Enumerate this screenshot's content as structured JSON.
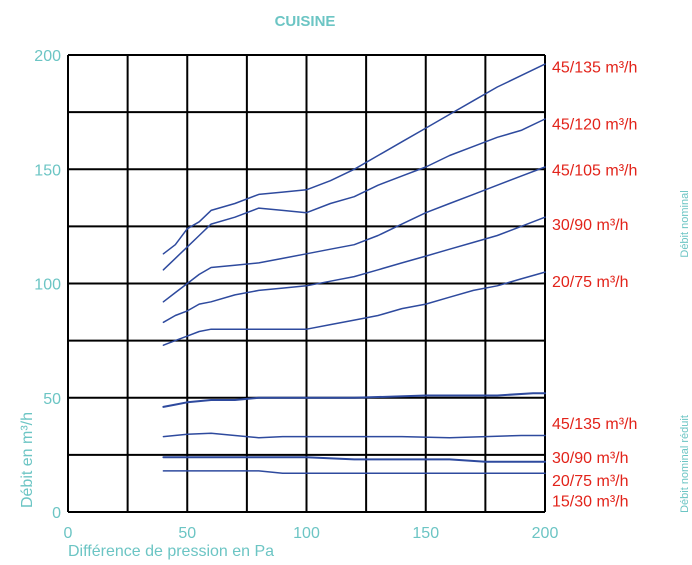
{
  "chart_data": {
    "type": "line",
    "title": "CUISINE",
    "xlabel": "Différence de pression en Pa",
    "ylabel": "Débit en m³/h",
    "xlim": [
      0,
      200
    ],
    "ylim": [
      0,
      200
    ],
    "x_ticks": [
      "0",
      "50",
      "100",
      "150",
      "200"
    ],
    "y_ticks": [
      "0",
      "50",
      "100",
      "150",
      "200"
    ],
    "grid": true,
    "colors": {
      "axis_text": "#6cc5c4",
      "series_labels": "#e2231a",
      "lines": "#2e4a9e",
      "grid": "#000000"
    },
    "group_labels": {
      "nominal": "Débit nominal",
      "reduced": "Débit nominal réduit"
    },
    "series": [
      {
        "name": "45/135 m³/h",
        "group": "nominal",
        "label_y": 195,
        "width": 1.5,
        "points": [
          [
            40,
            113
          ],
          [
            45,
            117
          ],
          [
            50,
            124
          ],
          [
            55,
            127
          ],
          [
            60,
            132
          ],
          [
            70,
            135
          ],
          [
            80,
            139
          ],
          [
            90,
            140
          ],
          [
            100,
            141
          ],
          [
            110,
            145
          ],
          [
            120,
            150
          ],
          [
            130,
            156
          ],
          [
            140,
            162
          ],
          [
            150,
            168
          ],
          [
            160,
            174
          ],
          [
            170,
            180
          ],
          [
            180,
            186
          ],
          [
            190,
            191
          ],
          [
            200,
            196
          ]
        ]
      },
      {
        "name": "45/120 m³/h",
        "group": "nominal",
        "label_y": 170,
        "width": 1.5,
        "points": [
          [
            40,
            106
          ],
          [
            45,
            111
          ],
          [
            50,
            116
          ],
          [
            55,
            121
          ],
          [
            60,
            126
          ],
          [
            70,
            129
          ],
          [
            80,
            133
          ],
          [
            90,
            132
          ],
          [
            100,
            131
          ],
          [
            110,
            135
          ],
          [
            120,
            138
          ],
          [
            130,
            143
          ],
          [
            140,
            147
          ],
          [
            150,
            151
          ],
          [
            160,
            156
          ],
          [
            170,
            160
          ],
          [
            180,
            164
          ],
          [
            190,
            167
          ],
          [
            200,
            172
          ]
        ]
      },
      {
        "name": "45/105 m³/h",
        "group": "nominal",
        "label_y": 150,
        "width": 1.5,
        "points": [
          [
            40,
            92
          ],
          [
            45,
            96
          ],
          [
            50,
            100
          ],
          [
            55,
            104
          ],
          [
            60,
            107
          ],
          [
            70,
            108
          ],
          [
            80,
            109
          ],
          [
            90,
            111
          ],
          [
            100,
            113
          ],
          [
            110,
            115
          ],
          [
            120,
            117
          ],
          [
            130,
            121
          ],
          [
            140,
            126
          ],
          [
            150,
            131
          ],
          [
            160,
            135
          ],
          [
            170,
            139
          ],
          [
            180,
            143
          ],
          [
            190,
            147
          ],
          [
            200,
            151
          ]
        ]
      },
      {
        "name": "30/90 m³/h",
        "group": "nominal",
        "label_y": 126,
        "width": 1.5,
        "points": [
          [
            40,
            83
          ],
          [
            45,
            86
          ],
          [
            50,
            88
          ],
          [
            55,
            91
          ],
          [
            60,
            92
          ],
          [
            70,
            95
          ],
          [
            80,
            97
          ],
          [
            90,
            98
          ],
          [
            100,
            99
          ],
          [
            110,
            101
          ],
          [
            120,
            103
          ],
          [
            130,
            106
          ],
          [
            140,
            109
          ],
          [
            150,
            112
          ],
          [
            160,
            115
          ],
          [
            170,
            118
          ],
          [
            180,
            121
          ],
          [
            190,
            125
          ],
          [
            200,
            129
          ]
        ]
      },
      {
        "name": "20/75 m³/h",
        "group": "nominal",
        "label_y": 101,
        "width": 1.5,
        "points": [
          [
            40,
            73
          ],
          [
            45,
            75
          ],
          [
            50,
            77
          ],
          [
            55,
            79
          ],
          [
            60,
            80
          ],
          [
            70,
            80
          ],
          [
            80,
            80
          ],
          [
            90,
            80
          ],
          [
            100,
            80
          ],
          [
            110,
            82
          ],
          [
            120,
            84
          ],
          [
            130,
            86
          ],
          [
            140,
            89
          ],
          [
            150,
            91
          ],
          [
            160,
            94
          ],
          [
            170,
            97
          ],
          [
            180,
            99
          ],
          [
            190,
            102
          ],
          [
            200,
            105
          ]
        ]
      },
      {
        "name": "45/135 m³/h",
        "group": "reduced",
        "label_y": 39,
        "width": 2,
        "points": [
          [
            40,
            46
          ],
          [
            45,
            47
          ],
          [
            50,
            48
          ],
          [
            60,
            49
          ],
          [
            70,
            49
          ],
          [
            80,
            50
          ],
          [
            100,
            50
          ],
          [
            120,
            50
          ],
          [
            150,
            51
          ],
          [
            180,
            51
          ],
          [
            195,
            52
          ],
          [
            200,
            52
          ]
        ]
      },
      {
        "name": "30/90 m³/h",
        "group": "reduced",
        "label_y": 24,
        "width": 1.5,
        "points": [
          [
            40,
            33
          ],
          [
            50,
            34
          ],
          [
            60,
            34.5
          ],
          [
            70,
            33.5
          ],
          [
            80,
            32.5
          ],
          [
            90,
            33
          ],
          [
            100,
            33
          ],
          [
            120,
            33
          ],
          [
            140,
            33
          ],
          [
            160,
            32.5
          ],
          [
            175,
            33
          ],
          [
            190,
            33.5
          ],
          [
            200,
            33.5
          ]
        ]
      },
      {
        "name": "20/75 m³/h",
        "group": "reduced",
        "label_y": 14,
        "width": 2,
        "points": [
          [
            40,
            24
          ],
          [
            60,
            24
          ],
          [
            80,
            24
          ],
          [
            100,
            24
          ],
          [
            120,
            23
          ],
          [
            140,
            23
          ],
          [
            160,
            23
          ],
          [
            175,
            22
          ],
          [
            190,
            22
          ],
          [
            200,
            22
          ]
        ]
      },
      {
        "name": "15/30 m³/h",
        "group": "reduced",
        "label_y": 5,
        "width": 1.5,
        "points": [
          [
            40,
            18
          ],
          [
            60,
            18
          ],
          [
            80,
            18
          ],
          [
            90,
            17
          ],
          [
            100,
            17
          ],
          [
            120,
            17
          ],
          [
            140,
            17
          ],
          [
            160,
            17
          ],
          [
            180,
            17
          ],
          [
            200,
            17
          ]
        ]
      }
    ]
  }
}
